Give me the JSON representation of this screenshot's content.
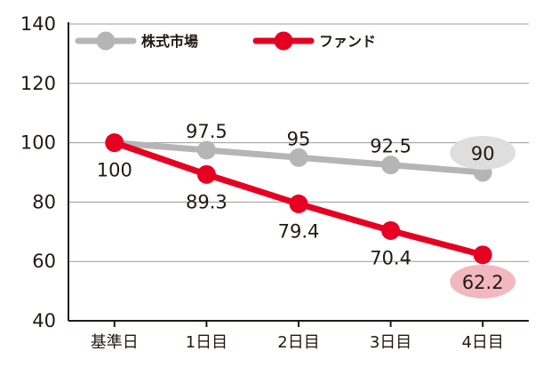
{
  "chart_data": {
    "type": "line",
    "categories": [
      "基準日",
      "1日目",
      "2日目",
      "3日目",
      "4日目"
    ],
    "ylim": [
      40,
      140
    ],
    "yticks": [
      40,
      60,
      80,
      100,
      120,
      140
    ],
    "grid": true,
    "legend_position": "top-left",
    "series": [
      {
        "name": "株式市場",
        "color": "#b5b5b5",
        "values": [
          100,
          97.5,
          95,
          92.5,
          90
        ],
        "labels": [
          "",
          "97.5",
          "95",
          "92.5",
          "90"
        ],
        "label_side": "above",
        "highlight_last_fill": "#dedede"
      },
      {
        "name": "ファンド",
        "color": "#e60022",
        "values": [
          100,
          89.3,
          79.4,
          70.4,
          62.2
        ],
        "labels": [
          "100",
          "89.3",
          "79.4",
          "70.4",
          "62.2"
        ],
        "label_side": "below",
        "highlight_last_fill": "#f2b8bf"
      }
    ]
  }
}
